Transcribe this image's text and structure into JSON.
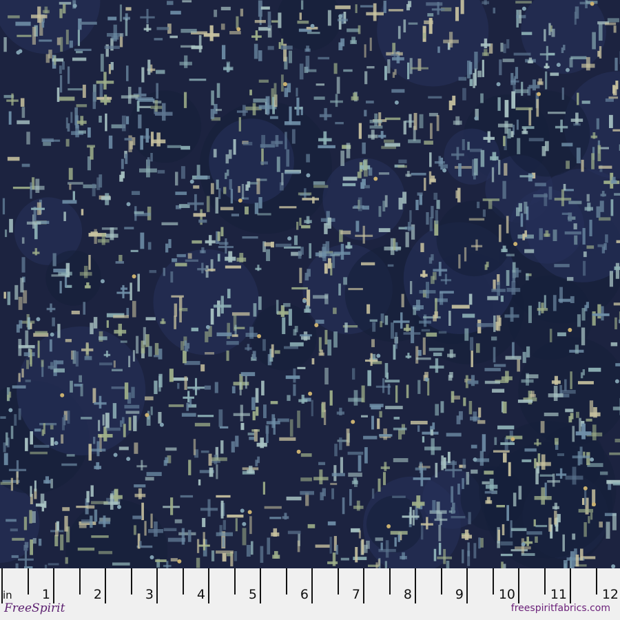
{
  "fabric": {
    "description_colors": {
      "background": "#1c2340",
      "motifs": [
        "#8fb3b8",
        "#a9c4c4",
        "#6f8fa8",
        "#9fb08a",
        "#c9c3a0",
        "#5d7690"
      ]
    }
  },
  "ruler": {
    "unit": "in",
    "numbers": [
      "1",
      "2",
      "3",
      "4",
      "5",
      "6",
      "7",
      "8",
      "9",
      "10",
      "11",
      "12"
    ]
  },
  "brand": {
    "logo": "FreeSpirit",
    "website": "freespiritfabrics.com",
    "color": "#6a1f78"
  }
}
